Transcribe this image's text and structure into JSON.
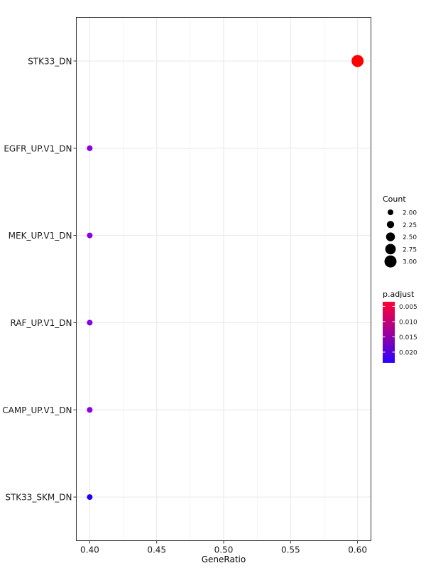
{
  "chart_data": {
    "type": "scatter",
    "xlabel": "GeneRatio",
    "ylabel": "",
    "xlim": [
      0.39,
      0.61
    ],
    "x_ticks": [
      "0.40",
      "0.45",
      "0.50",
      "0.55",
      "0.60"
    ],
    "x_tick_values": [
      0.4,
      0.45,
      0.5,
      0.55,
      0.6
    ],
    "grid": true,
    "legend_position": "right",
    "categories": [
      "STK33_DN",
      "EGFR_UP.V1_DN",
      "MEK_UP.V1_DN",
      "RAF_UP.V1_DN",
      "CAMP_UP.V1_DN",
      "STK33_SKM_DN"
    ],
    "points": [
      {
        "term": "STK33_DN",
        "gene_ratio": 0.6,
        "count": 3,
        "p_adjust": 0.0035,
        "color": "#ff0000"
      },
      {
        "term": "EGFR_UP.V1_DN",
        "gene_ratio": 0.4,
        "count": 2,
        "p_adjust": 0.0175,
        "color": "#8a00e0"
      },
      {
        "term": "MEK_UP.V1_DN",
        "gene_ratio": 0.4,
        "count": 2,
        "p_adjust": 0.0175,
        "color": "#8a00e0"
      },
      {
        "term": "RAF_UP.V1_DN",
        "gene_ratio": 0.4,
        "count": 2,
        "p_adjust": 0.0175,
        "color": "#8a00e0"
      },
      {
        "term": "CAMP_UP.V1_DN",
        "gene_ratio": 0.4,
        "count": 2,
        "p_adjust": 0.0175,
        "color": "#8a00e0"
      },
      {
        "term": "STK33_SKM_DN",
        "gene_ratio": 0.4,
        "count": 2,
        "p_adjust": 0.023,
        "color": "#1a00ff"
      }
    ],
    "legend_count": {
      "title": "Count",
      "values": [
        2.0,
        2.25,
        2.5,
        2.75,
        3.0
      ],
      "labels": [
        "2.00",
        "2.25",
        "2.50",
        "2.75",
        "3.00"
      ]
    },
    "legend_padjust": {
      "title": "p.adjust",
      "labels": [
        "0.005",
        "0.010",
        "0.015",
        "0.020"
      ],
      "values": [
        0.005,
        0.01,
        0.015,
        0.02
      ],
      "range": [
        0.0035,
        0.0235
      ],
      "color_low": "#ff0033",
      "color_high": "#2b00ff"
    }
  }
}
